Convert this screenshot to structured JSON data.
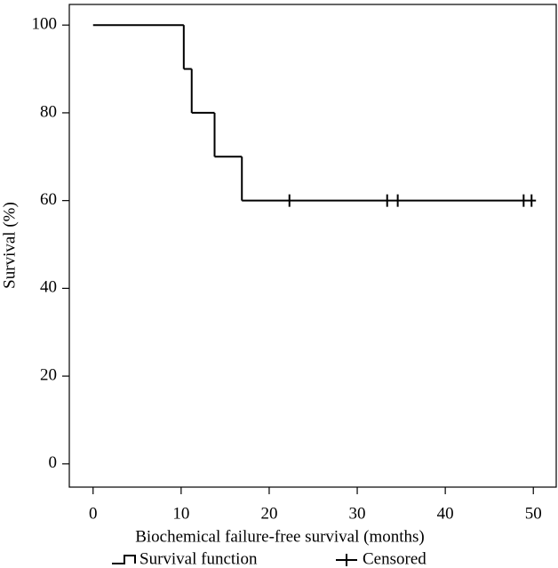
{
  "chart_data": {
    "type": "step",
    "x_label": "Biochemical failure-free survival (months)",
    "y_label": "Survival (%)",
    "series": [
      {
        "name": "Survival function",
        "color": "#000000",
        "x": [
          0,
          10.3,
          11.2,
          13.8,
          16.9,
          50.3
        ],
        "values": [
          100,
          90,
          80,
          70,
          60,
          60
        ]
      },
      {
        "name": "Censored",
        "color": "#000000",
        "x": [
          22.3,
          33.4,
          34.6,
          48.9,
          49.8
        ],
        "values": [
          60,
          60,
          60,
          60,
          60
        ]
      }
    ],
    "xlim": [
      -2.7,
      52.6
    ],
    "xticks": [
      0,
      10,
      20,
      30,
      40,
      50
    ],
    "ylim": [
      -5.3,
      104.7
    ],
    "yticks": [
      0,
      20,
      40,
      60,
      80,
      100
    ],
    "legend": "bottom"
  }
}
